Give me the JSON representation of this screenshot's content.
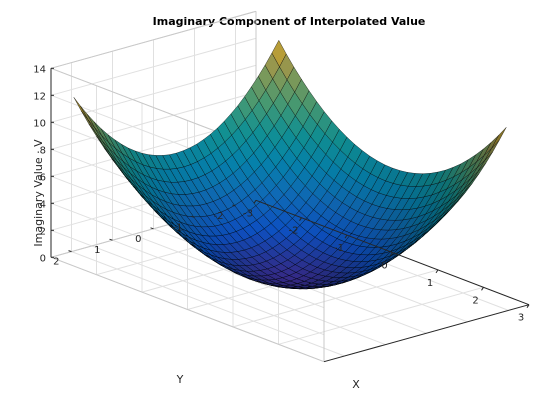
{
  "chart_data": {
    "type": "surface",
    "title": "Imaginary Component of Interpolated Value",
    "xlabel": "X",
    "ylabel": "Y",
    "zlabel": "Imaginary Value · V",
    "xlim": [
      -3,
      3
    ],
    "ylim": [
      -2.5,
      2.5
    ],
    "zlim": [
      0,
      14
    ],
    "x_ticks": [
      -3,
      -2,
      -1,
      0,
      1,
      2,
      3
    ],
    "y_ticks": [
      -2,
      -1,
      0,
      1,
      2
    ],
    "z_ticks": [
      0,
      2,
      4,
      6,
      8,
      10,
      12,
      14
    ],
    "grid": true,
    "colormap": "parula",
    "x_range": [
      -2.5,
      2.5
    ],
    "y_range": [
      -2.5,
      2.5
    ],
    "grid_points": 30,
    "surface_function": "z = x^2 + y^2",
    "corner_values": [
      {
        "x": -2.5,
        "y": -2.5,
        "z": 12.5
      },
      {
        "x": 2.5,
        "y": -2.5,
        "z": 12.5
      },
      {
        "x": -2.5,
        "y": 2.5,
        "z": 12.5
      },
      {
        "x": 2.5,
        "y": 2.5,
        "z": 12.5
      }
    ],
    "min_value": {
      "x": 0,
      "y": 0,
      "z": 0
    }
  }
}
